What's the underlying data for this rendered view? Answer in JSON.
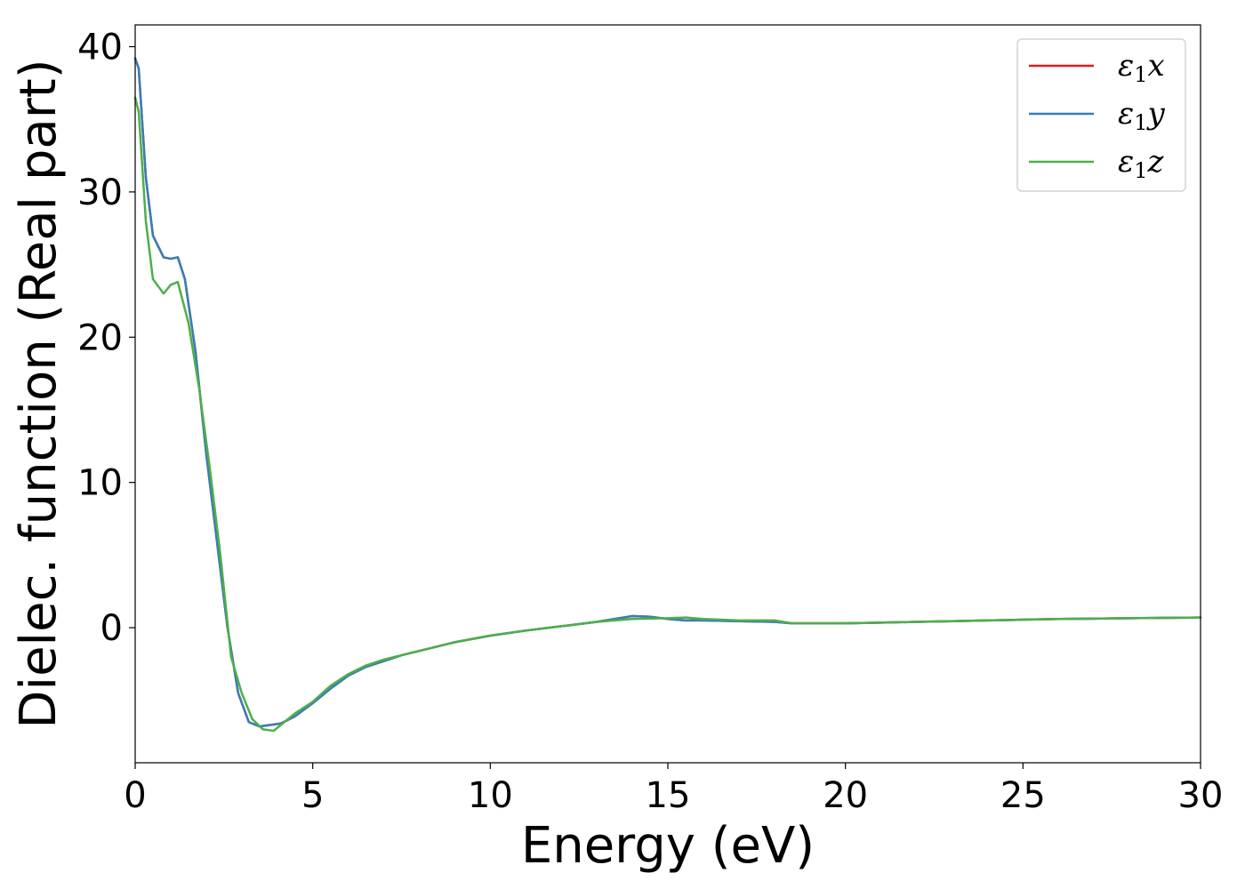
{
  "chart_data": {
    "type": "line",
    "title": "",
    "xlabel": "Energy (eV)",
    "ylabel": "Dielec. function (Real part)",
    "xlim": [
      0,
      30
    ],
    "ylim": [
      -9.3,
      41.5
    ],
    "xticks": [
      "0",
      "5",
      "10",
      "15",
      "20",
      "25",
      "30"
    ],
    "yticks": [
      "0",
      "10",
      "20",
      "30",
      "40"
    ],
    "grid": false,
    "legend_position": "top-right",
    "series": [
      {
        "name": "ε1x",
        "legend_base": "ε",
        "legend_sub": "1",
        "legend_tail": "x",
        "color": "#e41a1c",
        "x": [
          0,
          0.1,
          0.3,
          0.5,
          0.8,
          1.0,
          1.2,
          1.4,
          1.7,
          2.0,
          2.3,
          2.6,
          2.9,
          3.2,
          3.5,
          3.8,
          4.1,
          4.5,
          5.0,
          5.5,
          6.0,
          6.5,
          7.0,
          7.5,
          8,
          9,
          10,
          11,
          12,
          13,
          13.5,
          14,
          14.5,
          15,
          15.5,
          16,
          17,
          18,
          18.5,
          19,
          20,
          21,
          22,
          23,
          24,
          25,
          26,
          27,
          28,
          29,
          30
        ],
        "y": [
          39.2,
          38.5,
          31,
          27,
          25.5,
          25.4,
          25.5,
          24,
          19,
          12,
          6,
          0,
          -4.5,
          -6.5,
          -6.8,
          -6.7,
          -6.6,
          -6.1,
          -5.2,
          -4.2,
          -3.3,
          -2.7,
          -2.3,
          -1.9,
          -1.6,
          -1.0,
          -0.55,
          -0.2,
          0.1,
          0.4,
          0.6,
          0.8,
          0.75,
          0.6,
          0.5,
          0.5,
          0.45,
          0.4,
          0.3,
          0.3,
          0.3,
          0.35,
          0.4,
          0.45,
          0.5,
          0.55,
          0.6,
          0.62,
          0.65,
          0.68,
          0.7
        ]
      },
      {
        "name": "ε1y",
        "legend_base": "ε",
        "legend_sub": "1",
        "legend_tail": "y",
        "color": "#377eb8",
        "x": [
          0,
          0.1,
          0.3,
          0.5,
          0.8,
          1.0,
          1.2,
          1.4,
          1.7,
          2.0,
          2.3,
          2.6,
          2.9,
          3.2,
          3.5,
          3.8,
          4.1,
          4.5,
          5.0,
          5.5,
          6.0,
          6.5,
          7.0,
          7.5,
          8,
          9,
          10,
          11,
          12,
          13,
          13.5,
          14,
          14.5,
          15,
          15.5,
          16,
          17,
          18,
          18.5,
          19,
          20,
          21,
          22,
          23,
          24,
          25,
          26,
          27,
          28,
          29,
          30
        ],
        "y": [
          39.2,
          38.5,
          31,
          27,
          25.5,
          25.4,
          25.5,
          24,
          19,
          12,
          6,
          0,
          -4.5,
          -6.5,
          -6.8,
          -6.7,
          -6.6,
          -6.1,
          -5.2,
          -4.2,
          -3.3,
          -2.7,
          -2.3,
          -1.9,
          -1.6,
          -1.0,
          -0.55,
          -0.2,
          0.1,
          0.4,
          0.6,
          0.8,
          0.75,
          0.6,
          0.5,
          0.5,
          0.45,
          0.4,
          0.3,
          0.3,
          0.3,
          0.35,
          0.4,
          0.45,
          0.5,
          0.55,
          0.6,
          0.62,
          0.65,
          0.68,
          0.7
        ]
      },
      {
        "name": "ε1z",
        "legend_base": "ε",
        "legend_sub": "1",
        "legend_tail": "z",
        "color": "#4daf4a",
        "x": [
          0,
          0.1,
          0.3,
          0.5,
          0.8,
          1.0,
          1.2,
          1.5,
          1.8,
          2.1,
          2.4,
          2.7,
          3.0,
          3.3,
          3.6,
          3.9,
          4.2,
          4.5,
          5.0,
          5.5,
          6.0,
          6.5,
          7.0,
          7.5,
          8,
          9,
          10,
          11,
          12,
          13,
          14,
          15,
          15.5,
          16,
          17,
          18,
          18.5,
          19,
          20,
          21,
          22,
          23,
          24,
          25,
          26,
          27,
          28,
          29,
          30
        ],
        "y": [
          36.5,
          35.5,
          28,
          24,
          23,
          23.6,
          23.8,
          21,
          16.5,
          11,
          5,
          -2,
          -4.5,
          -6.3,
          -7,
          -7.1,
          -6.5,
          -5.9,
          -5.1,
          -4.0,
          -3.2,
          -2.6,
          -2.2,
          -1.9,
          -1.6,
          -1.0,
          -0.55,
          -0.2,
          0.1,
          0.4,
          0.6,
          0.65,
          0.7,
          0.6,
          0.5,
          0.5,
          0.3,
          0.3,
          0.3,
          0.35,
          0.4,
          0.45,
          0.5,
          0.55,
          0.6,
          0.62,
          0.65,
          0.68,
          0.7
        ]
      }
    ]
  }
}
